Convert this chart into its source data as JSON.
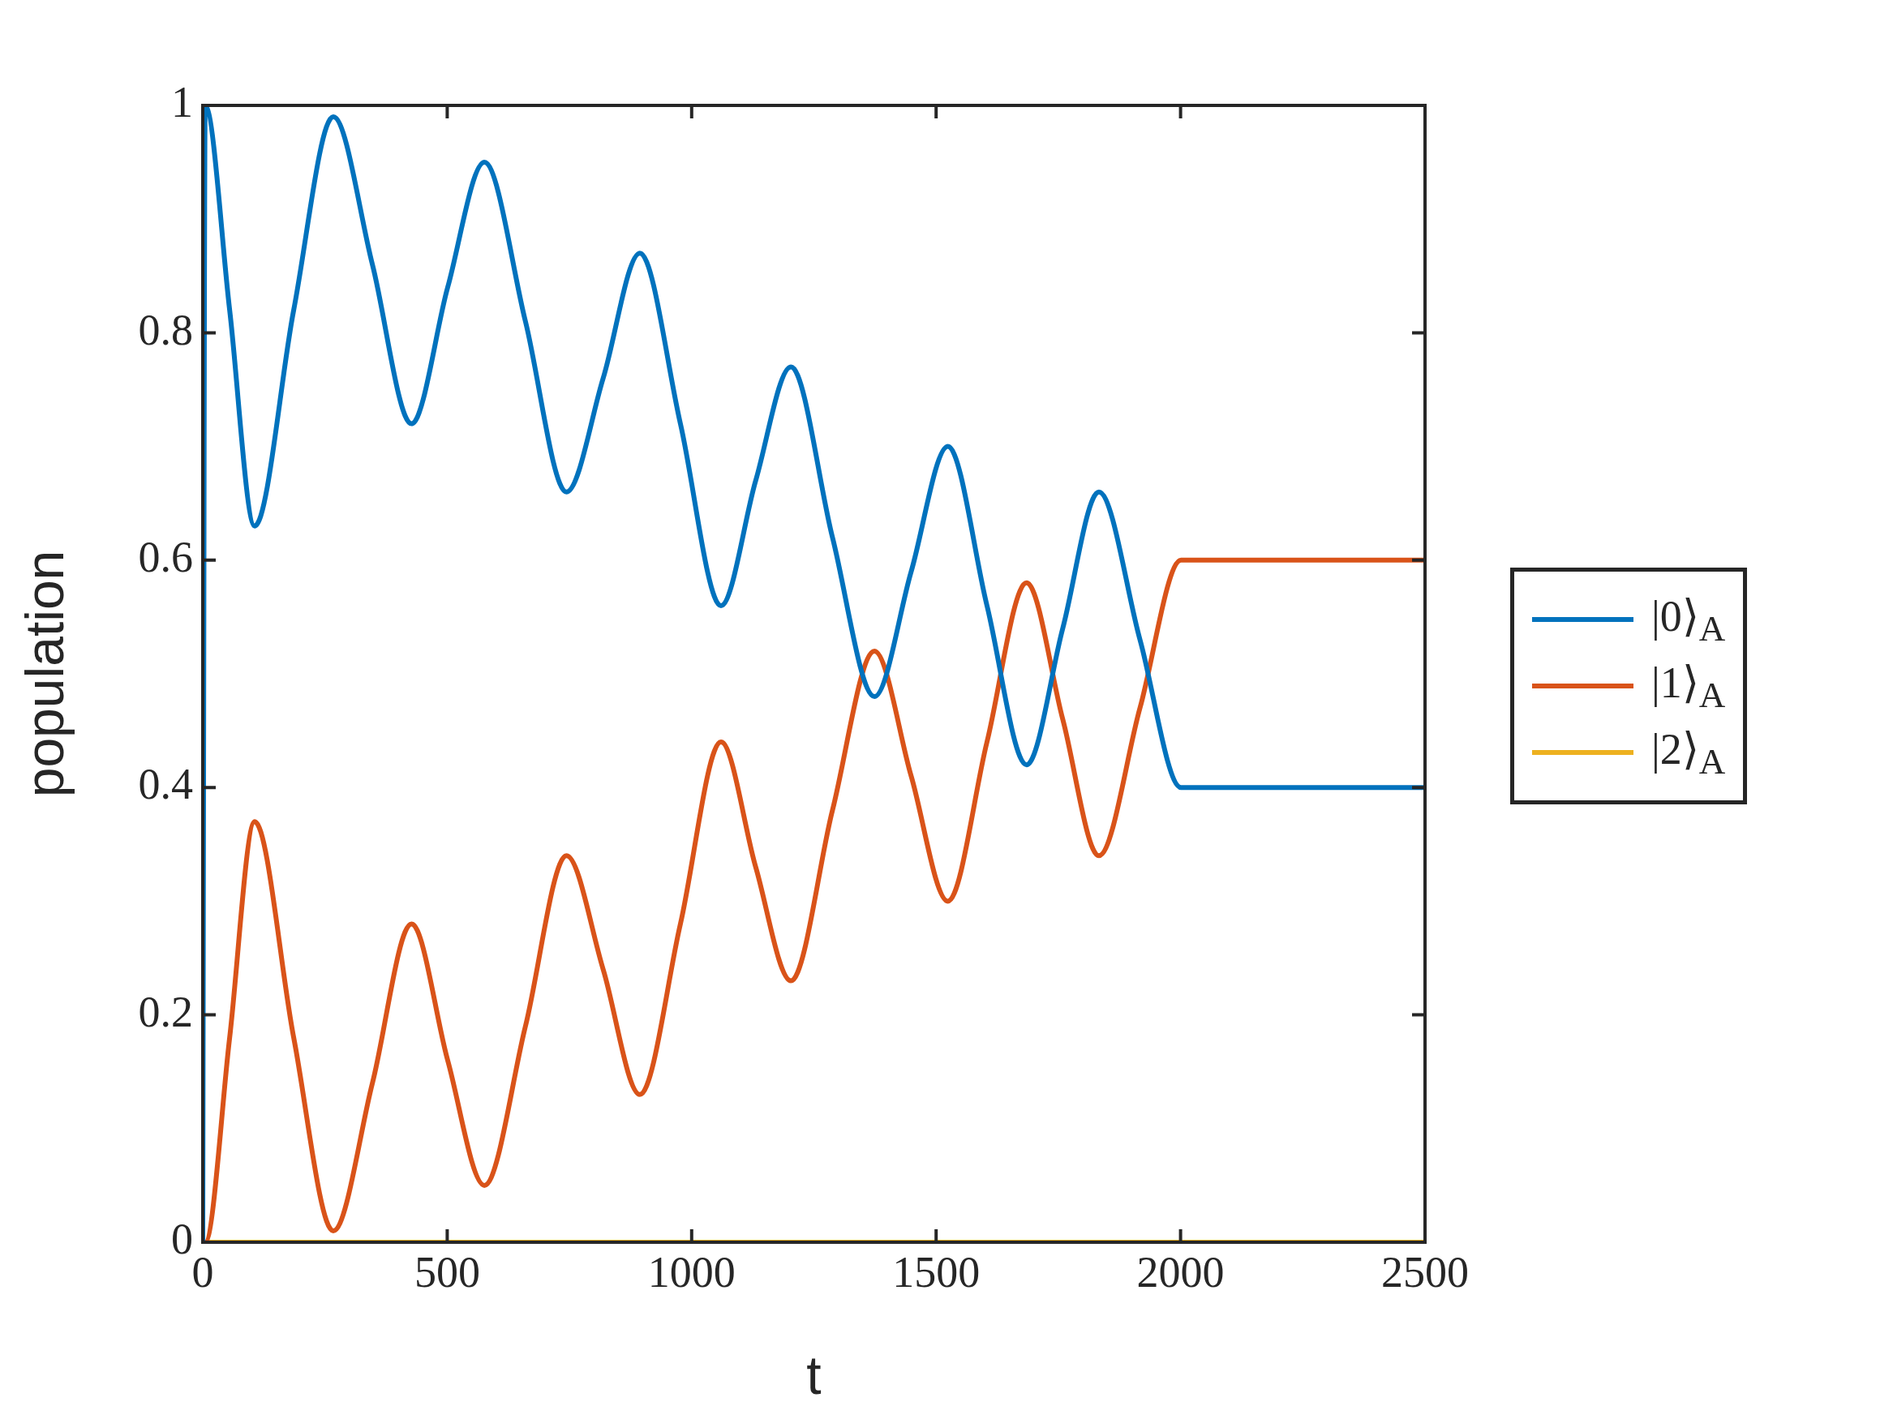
{
  "chart_data": {
    "type": "line",
    "xlabel": "t",
    "ylabel": "population",
    "xlim": [
      0,
      2500
    ],
    "xticks": [
      0,
      500,
      1000,
      1500,
      2000,
      2500
    ],
    "ylim": [
      0,
      1
    ],
    "yticks": [
      0,
      0.2,
      0.4,
      0.6,
      0.8,
      1
    ],
    "legend": "right",
    "grid": false,
    "marker": "none",
    "line_style": "solid",
    "series": [
      {
        "name": "|0⟩$_{A}$",
        "color": "#0072bd",
        "x": [
          0,
          5,
          55,
          106,
          186,
          267,
          347,
          427,
          501,
          576,
          660,
          744,
          819,
          894,
          977,
          1060,
          1131,
          1203,
          1288,
          1374,
          1449,
          1524,
          1604,
          1685,
          1759,
          1833,
          1917,
          2001,
          2500
        ],
        "values": [
          0,
          1,
          0.82,
          0.63,
          0.82,
          0.99,
          0.86,
          0.72,
          0.84,
          0.95,
          0.81,
          0.66,
          0.76,
          0.87,
          0.72,
          0.56,
          0.67,
          0.77,
          0.62,
          0.48,
          0.59,
          0.7,
          0.56,
          0.42,
          0.54,
          0.66,
          0.53,
          0.4,
          0.4
        ]
      },
      {
        "name": "|1⟩$_{A}$",
        "color": "#d95319",
        "x": [
          0,
          5,
          55,
          106,
          186,
          267,
          347,
          427,
          501,
          576,
          660,
          744,
          819,
          894,
          977,
          1060,
          1131,
          1203,
          1288,
          1374,
          1449,
          1524,
          1604,
          1685,
          1759,
          1833,
          1917,
          2001,
          2500
        ],
        "values": [
          0,
          0,
          0.18,
          0.37,
          0.18,
          0.01,
          0.14,
          0.28,
          0.16,
          0.05,
          0.19,
          0.34,
          0.24,
          0.13,
          0.28,
          0.44,
          0.33,
          0.23,
          0.38,
          0.52,
          0.41,
          0.3,
          0.44,
          0.58,
          0.46,
          0.34,
          0.47,
          0.6,
          0.6
        ]
      },
      {
        "name": "|2⟩$_{A}$",
        "color": "#edb120",
        "x": [
          0,
          2500
        ],
        "values": [
          0,
          0
        ]
      }
    ]
  }
}
